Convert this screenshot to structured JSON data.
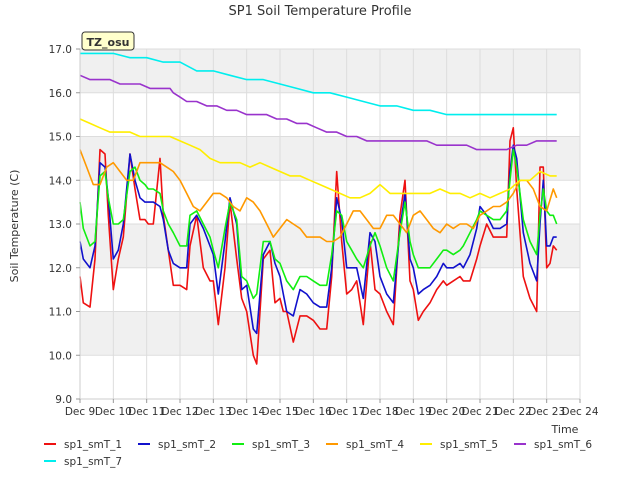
{
  "chart_data": {
    "type": "line",
    "title": "SP1 Soil Temperature Profile",
    "xlabel": "Time",
    "ylabel": "Soil Temperature (C)",
    "xlim": [
      9,
      24
    ],
    "ylim": [
      9.0,
      17.0
    ],
    "xtick_values": [
      9,
      10,
      11,
      12,
      13,
      14,
      15,
      16,
      17,
      18,
      19,
      20,
      21,
      22,
      23,
      24
    ],
    "xtick_labels": [
      "Dec 9",
      "Dec 10",
      "Dec 11",
      "Dec 12",
      "Dec 13",
      "Dec 14",
      "Dec 15",
      "Dec 16",
      "Dec 17",
      "Dec 18",
      "Dec 19",
      "Dec 20",
      "Dec 21",
      "Dec 22",
      "Dec 23",
      "Dec 24"
    ],
    "ytick_values": [
      9.0,
      10.0,
      11.0,
      12.0,
      13.0,
      14.0,
      15.0,
      16.0,
      17.0
    ],
    "ytick_labels": [
      "9.0",
      "10.0",
      "11.0",
      "12.0",
      "13.0",
      "14.0",
      "15.0",
      "16.0",
      "17.0"
    ],
    "grid": true,
    "banded_background": true,
    "legend_placement": "bottom",
    "annotation": "TZ_osu",
    "series": [
      {
        "name": "sp1_smT_1",
        "color": "#ee1111",
        "x": [
          9.0,
          9.1,
          9.3,
          9.45,
          9.6,
          9.75,
          9.85,
          10.0,
          10.15,
          10.3,
          10.5,
          10.65,
          10.8,
          10.95,
          11.05,
          11.2,
          11.4,
          11.5,
          11.65,
          11.8,
          12.0,
          12.2,
          12.3,
          12.5,
          12.7,
          12.9,
          13.0,
          13.15,
          13.35,
          13.5,
          13.7,
          13.85,
          14.0,
          14.2,
          14.3,
          14.5,
          14.7,
          14.85,
          15.0,
          15.1,
          15.2,
          15.4,
          15.6,
          15.8,
          16.0,
          16.2,
          16.4,
          16.55,
          16.7,
          16.85,
          17.0,
          17.15,
          17.3,
          17.5,
          17.7,
          17.85,
          18.0,
          18.2,
          18.4,
          18.6,
          18.75,
          18.9,
          19.0,
          19.15,
          19.3,
          19.5,
          19.7,
          19.9,
          20.0,
          20.2,
          20.4,
          20.5,
          20.7,
          20.9,
          21.0,
          21.2,
          21.4,
          21.6,
          21.8,
          21.9,
          22.0,
          22.1,
          22.3,
          22.5,
          22.7,
          22.8,
          22.9,
          23.0,
          23.1,
          23.2,
          23.3
        ],
        "y": [
          11.8,
          11.2,
          11.1,
          12.2,
          14.7,
          14.6,
          13.2,
          11.5,
          12.2,
          12.7,
          14.6,
          13.8,
          13.1,
          13.1,
          13.0,
          13.0,
          14.5,
          13.2,
          12.4,
          11.6,
          11.6,
          11.5,
          12.5,
          13.2,
          12.0,
          11.7,
          11.7,
          10.7,
          12.0,
          13.5,
          12.2,
          11.3,
          11.0,
          10.0,
          9.8,
          12.2,
          12.4,
          11.2,
          11.3,
          11.0,
          11.0,
          10.3,
          10.9,
          10.9,
          10.8,
          10.6,
          10.6,
          11.8,
          14.2,
          12.6,
          11.4,
          11.5,
          11.7,
          10.7,
          12.6,
          11.5,
          11.4,
          11.0,
          10.7,
          13.2,
          14.0,
          11.7,
          11.5,
          10.8,
          11.0,
          11.2,
          11.5,
          11.7,
          11.6,
          11.7,
          11.8,
          11.7,
          11.7,
          12.2,
          12.5,
          13.0,
          12.7,
          12.7,
          12.7,
          14.9,
          15.2,
          13.8,
          11.8,
          11.3,
          11.0,
          14.3,
          14.3,
          12.0,
          12.1,
          12.5,
          12.4
        ]
      },
      {
        "name": "sp1_smT_2",
        "color": "#1111cc",
        "x": [
          9.0,
          9.1,
          9.3,
          9.45,
          9.6,
          9.75,
          9.85,
          10.0,
          10.15,
          10.3,
          10.5,
          10.65,
          10.8,
          10.95,
          11.05,
          11.2,
          11.4,
          11.5,
          11.65,
          11.8,
          12.0,
          12.2,
          12.3,
          12.5,
          12.7,
          12.9,
          13.0,
          13.15,
          13.35,
          13.5,
          13.7,
          13.85,
          14.0,
          14.2,
          14.3,
          14.5,
          14.7,
          14.85,
          15.0,
          15.1,
          15.2,
          15.4,
          15.6,
          15.8,
          16.0,
          16.2,
          16.4,
          16.55,
          16.7,
          16.85,
          17.0,
          17.15,
          17.3,
          17.5,
          17.7,
          17.85,
          18.0,
          18.2,
          18.4,
          18.6,
          18.75,
          18.9,
          19.0,
          19.15,
          19.3,
          19.5,
          19.7,
          19.9,
          20.0,
          20.2,
          20.4,
          20.5,
          20.7,
          20.9,
          21.0,
          21.2,
          21.4,
          21.6,
          21.8,
          21.9,
          22.0,
          22.1,
          22.3,
          22.5,
          22.7,
          22.8,
          22.9,
          23.0,
          23.1,
          23.2,
          23.3
        ],
        "y": [
          12.6,
          12.2,
          12.0,
          12.5,
          14.4,
          14.3,
          13.6,
          12.2,
          12.4,
          13.0,
          14.6,
          14.0,
          13.6,
          13.5,
          13.5,
          13.5,
          13.4,
          13.1,
          12.4,
          12.1,
          12.0,
          12.0,
          13.0,
          13.2,
          12.9,
          12.5,
          12.3,
          11.4,
          12.6,
          13.6,
          13.0,
          11.5,
          11.6,
          10.6,
          10.5,
          12.3,
          12.6,
          12.1,
          11.8,
          11.4,
          11.0,
          10.9,
          11.5,
          11.4,
          11.2,
          11.1,
          11.1,
          12.0,
          13.6,
          13.1,
          12.0,
          12.0,
          12.0,
          11.3,
          12.8,
          12.6,
          11.8,
          11.4,
          11.2,
          12.9,
          13.7,
          12.2,
          12.0,
          11.4,
          11.5,
          11.6,
          11.8,
          12.1,
          12.0,
          12.0,
          12.1,
          12.0,
          12.3,
          12.9,
          13.4,
          13.2,
          12.9,
          12.9,
          13.0,
          14.2,
          14.8,
          14.5,
          12.8,
          12.1,
          11.7,
          13.0,
          14.0,
          12.5,
          12.5,
          12.7,
          12.7
        ]
      },
      {
        "name": "sp1_smT_3",
        "color": "#11ee11",
        "x": [
          9.0,
          9.1,
          9.3,
          9.45,
          9.6,
          9.75,
          9.85,
          10.0,
          10.15,
          10.3,
          10.5,
          10.65,
          10.8,
          10.95,
          11.05,
          11.2,
          11.4,
          11.5,
          11.65,
          11.8,
          12.0,
          12.2,
          12.3,
          12.5,
          12.7,
          12.9,
          13.0,
          13.15,
          13.35,
          13.5,
          13.7,
          13.85,
          14.0,
          14.2,
          14.3,
          14.5,
          14.7,
          14.85,
          15.0,
          15.1,
          15.2,
          15.4,
          15.6,
          15.8,
          16.0,
          16.2,
          16.4,
          16.55,
          16.7,
          16.85,
          17.0,
          17.15,
          17.3,
          17.5,
          17.7,
          17.85,
          18.0,
          18.2,
          18.4,
          18.6,
          18.75,
          18.9,
          19.0,
          19.15,
          19.3,
          19.5,
          19.7,
          19.9,
          20.0,
          20.2,
          20.4,
          20.5,
          20.7,
          20.9,
          21.0,
          21.2,
          21.4,
          21.6,
          21.8,
          21.9,
          22.0,
          22.1,
          22.3,
          22.5,
          22.7,
          22.8,
          22.9,
          23.0,
          23.1,
          23.2,
          23.3
        ],
        "y": [
          13.5,
          12.9,
          12.5,
          12.6,
          14.1,
          14.2,
          13.6,
          13.0,
          13.0,
          13.1,
          14.2,
          14.3,
          14.0,
          13.9,
          13.8,
          13.8,
          13.7,
          13.3,
          13.0,
          12.8,
          12.5,
          12.5,
          13.2,
          13.3,
          13.0,
          12.7,
          12.4,
          12.0,
          12.9,
          13.5,
          13.1,
          11.8,
          11.7,
          11.3,
          11.4,
          12.6,
          12.6,
          12.2,
          12.1,
          11.9,
          11.7,
          11.5,
          11.8,
          11.8,
          11.7,
          11.6,
          11.6,
          12.3,
          13.3,
          13.2,
          12.6,
          12.4,
          12.2,
          12.0,
          12.5,
          12.8,
          12.5,
          12.0,
          11.7,
          12.8,
          13.5,
          12.6,
          12.3,
          12.0,
          12.0,
          12.0,
          12.2,
          12.4,
          12.4,
          12.3,
          12.4,
          12.5,
          12.8,
          13.1,
          13.3,
          13.2,
          13.1,
          13.1,
          13.3,
          14.0,
          14.7,
          14.3,
          13.1,
          12.6,
          12.3,
          13.2,
          13.8,
          13.3,
          13.2,
          13.2,
          13.0
        ]
      },
      {
        "name": "sp1_smT_4",
        "color": "#ff9900",
        "x": [
          9.0,
          9.2,
          9.4,
          9.6,
          9.8,
          10.0,
          10.2,
          10.4,
          10.6,
          10.8,
          11.0,
          11.2,
          11.4,
          11.6,
          11.8,
          12.0,
          12.2,
          12.4,
          12.6,
          12.8,
          13.0,
          13.2,
          13.4,
          13.6,
          13.8,
          14.0,
          14.2,
          14.4,
          14.6,
          14.8,
          15.0,
          15.2,
          15.4,
          15.6,
          15.8,
          16.0,
          16.2,
          16.4,
          16.6,
          16.8,
          17.0,
          17.2,
          17.4,
          17.6,
          17.8,
          18.0,
          18.2,
          18.4,
          18.6,
          18.8,
          19.0,
          19.2,
          19.4,
          19.6,
          19.8,
          20.0,
          20.2,
          20.4,
          20.6,
          20.8,
          21.0,
          21.2,
          21.4,
          21.6,
          21.8,
          22.0,
          22.2,
          22.4,
          22.6,
          22.8,
          23.0,
          23.2,
          23.3
        ],
        "y": [
          14.7,
          14.3,
          13.9,
          13.9,
          14.3,
          14.4,
          14.2,
          14.0,
          14.0,
          14.4,
          14.4,
          14.4,
          14.4,
          14.3,
          14.2,
          14.0,
          13.7,
          13.4,
          13.3,
          13.5,
          13.7,
          13.7,
          13.6,
          13.4,
          13.3,
          13.6,
          13.5,
          13.3,
          13.0,
          12.7,
          12.9,
          13.1,
          13.0,
          12.9,
          12.7,
          12.7,
          12.7,
          12.6,
          12.6,
          12.7,
          13.0,
          13.3,
          13.3,
          13.1,
          12.9,
          12.9,
          13.2,
          13.2,
          13.0,
          12.8,
          13.2,
          13.3,
          13.1,
          12.9,
          12.8,
          13.0,
          12.9,
          13.0,
          13.0,
          12.9,
          13.2,
          13.3,
          13.4,
          13.4,
          13.5,
          13.7,
          14.0,
          14.0,
          13.8,
          13.4,
          13.3,
          13.8,
          13.6
        ]
      },
      {
        "name": "sp1_smT_5",
        "color": "#ffee00",
        "x": [
          9.0,
          9.3,
          9.6,
          9.9,
          10.2,
          10.5,
          10.8,
          11.1,
          11.4,
          11.7,
          12.0,
          12.3,
          12.6,
          12.9,
          13.2,
          13.5,
          13.8,
          14.1,
          14.4,
          14.7,
          15.0,
          15.3,
          15.6,
          15.9,
          16.2,
          16.5,
          16.8,
          17.1,
          17.4,
          17.7,
          18.0,
          18.3,
          18.6,
          18.9,
          19.2,
          19.5,
          19.8,
          20.1,
          20.4,
          20.7,
          21.0,
          21.3,
          21.6,
          21.9,
          22.2,
          22.5,
          22.8,
          23.1,
          23.3
        ],
        "y": [
          15.4,
          15.3,
          15.2,
          15.1,
          15.1,
          15.1,
          15.0,
          15.0,
          15.0,
          15.0,
          14.9,
          14.8,
          14.7,
          14.5,
          14.4,
          14.4,
          14.4,
          14.3,
          14.4,
          14.3,
          14.2,
          14.1,
          14.1,
          14.0,
          13.9,
          13.8,
          13.7,
          13.6,
          13.6,
          13.7,
          13.9,
          13.7,
          13.7,
          13.7,
          13.7,
          13.7,
          13.8,
          13.7,
          13.7,
          13.6,
          13.7,
          13.6,
          13.7,
          13.8,
          14.0,
          14.0,
          14.2,
          14.1,
          14.1
        ]
      },
      {
        "name": "sp1_smT_6",
        "color": "#9933cc",
        "x": [
          9.0,
          9.3,
          9.6,
          9.9,
          10.2,
          10.5,
          10.8,
          11.1,
          11.4,
          11.7,
          11.8,
          12.0,
          12.2,
          12.5,
          12.8,
          13.1,
          13.4,
          13.7,
          14.0,
          14.3,
          14.6,
          14.9,
          15.2,
          15.5,
          15.8,
          16.1,
          16.4,
          16.7,
          17.0,
          17.3,
          17.6,
          17.9,
          18.2,
          18.5,
          18.8,
          19.1,
          19.4,
          19.7,
          20.0,
          20.3,
          20.6,
          20.9,
          21.2,
          21.5,
          21.8,
          22.1,
          22.4,
          22.7,
          23.0,
          23.3
        ],
        "y": [
          16.4,
          16.3,
          16.3,
          16.3,
          16.2,
          16.2,
          16.2,
          16.1,
          16.1,
          16.1,
          16.0,
          15.9,
          15.8,
          15.8,
          15.7,
          15.7,
          15.6,
          15.6,
          15.5,
          15.5,
          15.5,
          15.4,
          15.4,
          15.3,
          15.3,
          15.2,
          15.1,
          15.1,
          15.0,
          15.0,
          14.9,
          14.9,
          14.9,
          14.9,
          14.9,
          14.9,
          14.9,
          14.8,
          14.8,
          14.8,
          14.8,
          14.7,
          14.7,
          14.7,
          14.7,
          14.8,
          14.8,
          14.9,
          14.9,
          14.9
        ]
      },
      {
        "name": "sp1_smT_7",
        "color": "#00eeee",
        "x": [
          9.0,
          9.5,
          10.0,
          10.5,
          11.0,
          11.5,
          12.0,
          12.5,
          13.0,
          13.5,
          14.0,
          14.5,
          15.0,
          15.5,
          16.0,
          16.5,
          17.0,
          17.5,
          18.0,
          18.5,
          19.0,
          19.5,
          20.0,
          20.5,
          21.0,
          21.5,
          21.8,
          22.0,
          22.5,
          23.0,
          23.3
        ],
        "y": [
          16.9,
          16.9,
          16.9,
          16.8,
          16.8,
          16.7,
          16.7,
          16.5,
          16.5,
          16.4,
          16.3,
          16.3,
          16.2,
          16.1,
          16.0,
          16.0,
          15.9,
          15.8,
          15.7,
          15.7,
          15.6,
          15.6,
          15.5,
          15.5,
          15.5,
          15.5,
          15.5,
          15.5,
          15.5,
          15.5,
          15.5
        ]
      }
    ]
  }
}
